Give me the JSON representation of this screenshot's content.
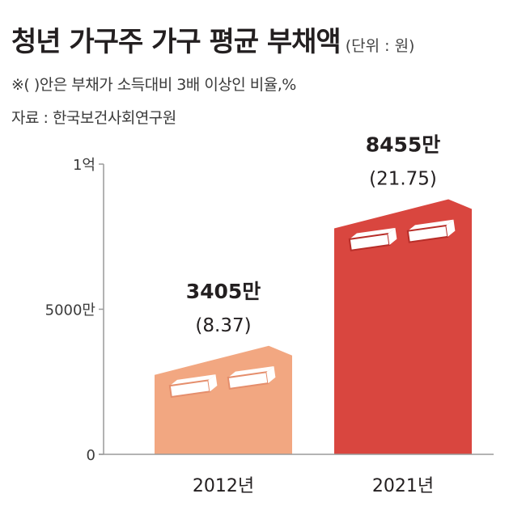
{
  "title": "청년 가구주 가구 평균 부채액",
  "unit": "(단위 : 원)",
  "note": "※(  )안은 부채가 소득대비 3배 이상인 비율,%",
  "source": "자료 : 한국보건사회연구원",
  "colors": {
    "bar_2012": "#f2a781",
    "bar_2021": "#d9463f",
    "book_edge_2012": "#e58e6c",
    "book_edge_2021": "#b82e29"
  },
  "chart_data": {
    "type": "bar",
    "categories": [
      "2012년",
      "2021년"
    ],
    "values": [
      3405,
      8455
    ],
    "value_labels": [
      "3405만",
      "8455만"
    ],
    "ratios": [
      8.37,
      21.75
    ],
    "ratio_labels": [
      "(8.37)",
      "(21.75)"
    ],
    "yticks": [
      0,
      5000,
      10000
    ],
    "ytick_labels": [
      "0",
      "5000만",
      "1억"
    ],
    "ylim": [
      0,
      10000
    ],
    "xlabel": "",
    "ylabel": "",
    "grid": false
  }
}
